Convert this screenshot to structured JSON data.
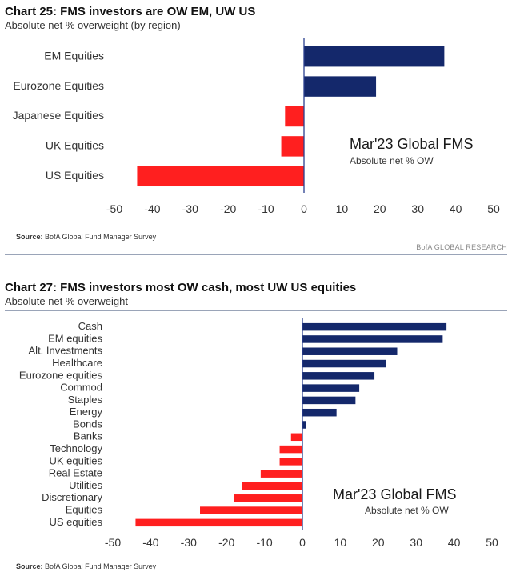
{
  "colors": {
    "positive": "#14286b",
    "negative": "#ff1f1f",
    "axis": "#2a3f8f"
  },
  "chart_data": [
    {
      "type": "bar",
      "orientation": "horizontal",
      "title": "Chart 25: FMS investors are OW EM, UW US",
      "subtitle": "Absolute net % overweight (by region)",
      "categories": [
        "EM Equities",
        "Eurozone Equities",
        "Japanese Equities",
        "UK Equities",
        "US Equities"
      ],
      "values": [
        37,
        19,
        -5,
        -6,
        -44
      ],
      "xlim": [
        -50,
        50
      ],
      "xticks": [
        -50,
        -40,
        -30,
        -20,
        -10,
        0,
        10,
        20,
        30,
        40,
        50
      ],
      "annotation": {
        "title": "Mar'23 Global FMS",
        "subtitle": "Absolute net % OW"
      },
      "source_label": "Source:",
      "source": "BofA Global Fund Manager Survey",
      "credit": "BofA GLOBAL RESEARCH"
    },
    {
      "type": "bar",
      "orientation": "horizontal",
      "title": "Chart 27: FMS investors most OW cash, most UW US equities",
      "subtitle": "Absolute net % overweight",
      "categories": [
        "Cash",
        "EM equities",
        "Alt. Investments",
        "Healthcare",
        "Eurozone equities",
        "Commod",
        "Staples",
        "Energy",
        "Bonds",
        "Banks",
        "Technology",
        "UK equities",
        "Real Estate",
        "Utilities",
        "Discretionary",
        "Equities",
        "US equities"
      ],
      "values": [
        38,
        37,
        25,
        22,
        19,
        15,
        14,
        9,
        1,
        -3,
        -6,
        -6,
        -11,
        -16,
        -18,
        -27,
        -44
      ],
      "xlim": [
        -50,
        50
      ],
      "xticks": [
        -50,
        -40,
        -30,
        -20,
        -10,
        0,
        10,
        20,
        30,
        40,
        50
      ],
      "annotation": {
        "title": "Mar'23 Global FMS",
        "subtitle": "Absolute net % OW"
      },
      "source_label": "Source:",
      "source": "BofA Global Fund Manager Survey"
    }
  ]
}
